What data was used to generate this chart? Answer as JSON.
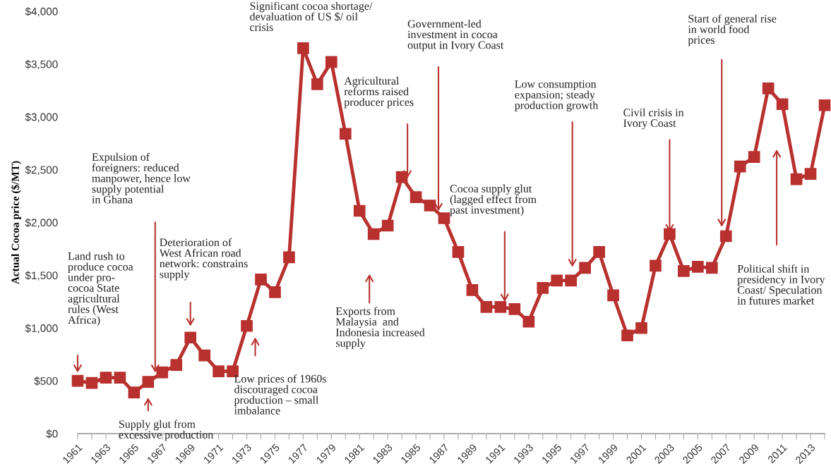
{
  "chart_data": {
    "type": "line",
    "ylabel": "Actual Cocoa price ($/MT)",
    "x": [
      1961,
      1962,
      1963,
      1964,
      1965,
      1966,
      1967,
      1968,
      1969,
      1970,
      1971,
      1972,
      1973,
      1974,
      1975,
      1976,
      1977,
      1978,
      1979,
      1980,
      1981,
      1982,
      1983,
      1984,
      1985,
      1986,
      1987,
      1988,
      1989,
      1990,
      1991,
      1992,
      1993,
      1994,
      1995,
      1996,
      1997,
      1998,
      1999,
      2000,
      2001,
      2002,
      2003,
      2004,
      2005,
      2006,
      2007,
      2008,
      2009,
      2010,
      2011,
      2012,
      2013,
      2014
    ],
    "series": [
      {
        "color": "#b8312f",
        "values": [
          500,
          480,
          530,
          530,
          390,
          490,
          580,
          650,
          910,
          740,
          590,
          590,
          1020,
          1460,
          1340,
          1670,
          3650,
          3310,
          3520,
          2840,
          2110,
          1890,
          1970,
          2430,
          2240,
          2160,
          2040,
          1720,
          1360,
          1200,
          1200,
          1180,
          1060,
          1380,
          1450,
          1450,
          1570,
          1720,
          1310,
          930,
          1000,
          1590,
          1890,
          1540,
          1580,
          1570,
          1870,
          2530,
          2620,
          3270,
          3120,
          2410,
          2460,
          3110
        ]
      }
    ],
    "marker": "square",
    "line_style": "solid",
    "grid": false,
    "legend": false,
    "xlim": [
      1961,
      2014
    ],
    "xticks": [
      1961,
      {
        "value": 1962,
        "label": null
      },
      1963,
      {
        "value": 1964,
        "label": null
      },
      1965,
      {
        "value": 1966,
        "label": null
      },
      1967,
      {
        "value": 1968,
        "label": null
      },
      1969,
      {
        "value": 1970,
        "label": null
      },
      1971,
      {
        "value": 1972,
        "label": null
      },
      1973,
      {
        "value": 1974,
        "label": null
      },
      1975,
      {
        "value": 1976,
        "label": null
      },
      1977,
      {
        "value": 1978,
        "label": null
      },
      1979,
      {
        "value": 1980,
        "label": null
      },
      1981,
      {
        "value": 1982,
        "label": null
      },
      1983,
      {
        "value": 1984,
        "label": null
      },
      1985,
      {
        "value": 1986,
        "label": null
      },
      1987,
      {
        "value": 1988,
        "label": null
      },
      1989,
      {
        "value": 1990,
        "label": null
      },
      1991,
      {
        "value": 1992,
        "label": null
      },
      1993,
      {
        "value": 1994,
        "label": null
      },
      1995,
      {
        "value": 1996,
        "label": null
      },
      1997,
      {
        "value": 1998,
        "label": null
      },
      1999,
      {
        "value": 2000,
        "label": null
      },
      2001,
      {
        "value": 2002,
        "label": null
      },
      2003,
      {
        "value": 2004,
        "label": null
      },
      2005,
      {
        "value": 2006,
        "label": null
      },
      2007,
      {
        "value": 2008,
        "label": null
      },
      2009,
      {
        "value": 2010,
        "label": null
      },
      2011,
      {
        "value": 2012,
        "label": null
      },
      2013,
      {
        "value": 2014,
        "label": null
      }
    ],
    "ylim": [
      0,
      4000
    ],
    "yticks": [
      {
        "value": 0,
        "label": "$0"
      },
      {
        "value": 500,
        "label": "$500"
      },
      {
        "value": 1000,
        "label": "$1,000"
      },
      {
        "value": 1500,
        "label": "$1,500"
      },
      {
        "value": 2000,
        "label": "$2,000"
      },
      {
        "value": 2500,
        "label": "$2,500"
      },
      {
        "value": 3000,
        "label": "$3,000"
      },
      {
        "value": 3500,
        "label": "$3,500"
      },
      {
        "value": 4000,
        "label": "$4,000"
      }
    ],
    "annotations": [
      "Land rush to\nproduce cocoa\nunder pro-\ncocoa State\nagricultural\nrules (West\nAfrica)",
      "Expulsion of\nforeigners: reduced\nmanpower, hence low\nsupply potential\nin Ghana",
      "Deterioration of\nWest African road\nnetwork: constrains\nsupply",
      "Supply glut from\nexcessive production",
      "Low prices of 1960s\ndiscouraged cocoa\nproduction – small\nimbalance",
      "Significant cocoa shortage/\ndevaluation of US $/ oil\ncrisis",
      "Agricultural\nreforms raised\nproducer prices",
      "Government-led\ninvestment in cocoa\noutput in Ivory Coast",
      "Exports from\nMalaysia  and\nIndonesia increased\nsupply",
      "Cocoa supply glut\n(lagged effect from\npast investment)",
      "Low consumption\nexpansion; steady\nproduction growth",
      {
        "text": "Civil crisis in\nIvory Coast",
        "x": 2003,
        "y": 1890
      },
      "Start of general rise\nin world food\nprices",
      "Political shift in\npresidency in Ivory\nCoast/ Speculation\nin futures market"
    ]
  }
}
